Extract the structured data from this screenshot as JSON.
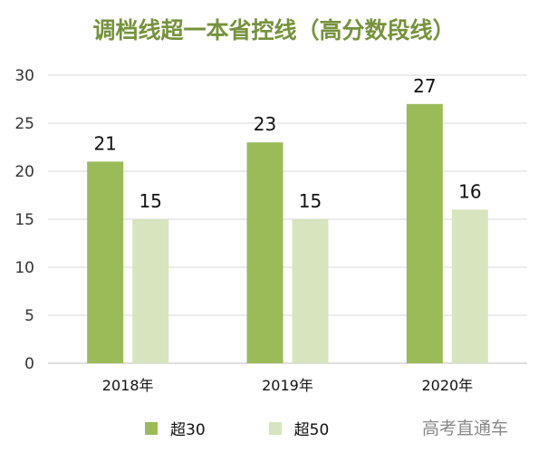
{
  "chart_data": {
    "type": "bar",
    "title": "调档线超一本省控线（高分数段线）",
    "categories": [
      "2018年",
      "2019年",
      "2020年"
    ],
    "series": [
      {
        "name": "超30",
        "values": [
          21,
          23,
          27
        ],
        "color": "#9bbb59"
      },
      {
        "name": "超50",
        "values": [
          15,
          15,
          16
        ],
        "color": "#d7e4bd"
      }
    ],
    "yticks": [
      "0",
      "5",
      "10",
      "15",
      "20",
      "25",
      "30"
    ],
    "ylim": [
      0,
      30
    ],
    "xlabel": "",
    "ylabel": "",
    "grid": true,
    "legend": "bottom"
  },
  "watermark": "高考直通车"
}
